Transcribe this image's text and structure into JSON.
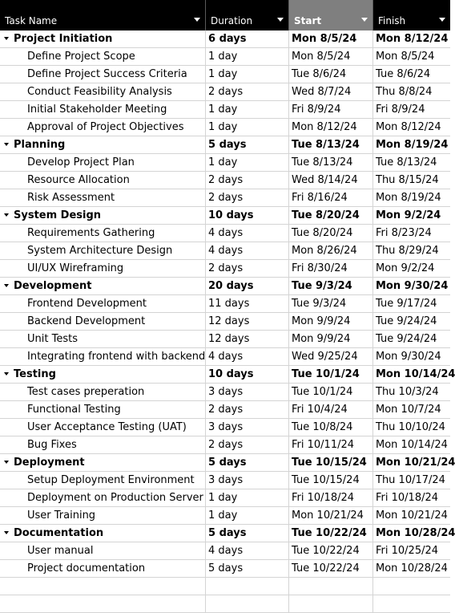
{
  "columns": [
    {
      "label": "Task Name",
      "active": false
    },
    {
      "label": "Duration",
      "active": false
    },
    {
      "label": "Start",
      "active": true
    },
    {
      "label": "Finish",
      "active": false
    }
  ],
  "rows": [
    {
      "type": "summary",
      "task": "Project Initiation",
      "duration": "6 days",
      "start": "Mon 8/5/24",
      "finish": "Mon 8/12/24"
    },
    {
      "type": "task",
      "task": "Define Project Scope",
      "duration": "1 day",
      "start": "Mon 8/5/24",
      "finish": "Mon 8/5/24"
    },
    {
      "type": "task",
      "task": "Define Project Success Criteria",
      "duration": "1 day",
      "start": "Tue 8/6/24",
      "finish": "Tue 8/6/24"
    },
    {
      "type": "task",
      "task": "Conduct Feasibility Analysis",
      "duration": "2 days",
      "start": "Wed 8/7/24",
      "finish": "Thu 8/8/24"
    },
    {
      "type": "task",
      "task": "Initial Stakeholder Meeting",
      "duration": "1 day",
      "start": "Fri 8/9/24",
      "finish": "Fri 8/9/24"
    },
    {
      "type": "task",
      "task": "Approval of Project Objectives",
      "duration": "1 day",
      "start": "Mon 8/12/24",
      "finish": "Mon 8/12/24"
    },
    {
      "type": "summary",
      "task": "Planning",
      "duration": "5 days",
      "start": "Tue 8/13/24",
      "finish": "Mon 8/19/24"
    },
    {
      "type": "task",
      "task": "Develop Project Plan",
      "duration": "1 day",
      "start": "Tue 8/13/24",
      "finish": "Tue 8/13/24"
    },
    {
      "type": "task",
      "task": "Resource Allocation",
      "duration": "2 days",
      "start": "Wed 8/14/24",
      "finish": "Thu 8/15/24"
    },
    {
      "type": "task",
      "task": "Risk Assessment",
      "duration": "2 days",
      "start": "Fri 8/16/24",
      "finish": "Mon 8/19/24"
    },
    {
      "type": "summary",
      "task": "System Design",
      "duration": "10 days",
      "start": "Tue 8/20/24",
      "finish": "Mon 9/2/24"
    },
    {
      "type": "task",
      "task": "Requirements Gathering",
      "duration": "4 days",
      "start": "Tue 8/20/24",
      "finish": "Fri 8/23/24"
    },
    {
      "type": "task",
      "task": "System Architecture Design",
      "duration": "4 days",
      "start": "Mon 8/26/24",
      "finish": "Thu 8/29/24"
    },
    {
      "type": "task",
      "task": "UI/UX Wireframing",
      "duration": "2 days",
      "start": "Fri 8/30/24",
      "finish": "Mon 9/2/24"
    },
    {
      "type": "summary",
      "task": "Development",
      "duration": "20 days",
      "start": "Tue 9/3/24",
      "finish": "Mon 9/30/24"
    },
    {
      "type": "task",
      "task": "Frontend Development",
      "duration": "11 days",
      "start": "Tue 9/3/24",
      "finish": "Tue 9/17/24"
    },
    {
      "type": "task",
      "task": "Backend Development",
      "duration": "12 days",
      "start": "Mon 9/9/24",
      "finish": "Tue 9/24/24"
    },
    {
      "type": "task",
      "task": "Unit Tests",
      "duration": "12 days",
      "start": "Mon 9/9/24",
      "finish": "Tue 9/24/24"
    },
    {
      "type": "task",
      "task": "Integrating frontend with backend",
      "duration": "4 days",
      "start": "Wed 9/25/24",
      "finish": "Mon 9/30/24"
    },
    {
      "type": "summary",
      "task": "Testing",
      "duration": "10 days",
      "start": "Tue 10/1/24",
      "finish": "Mon 10/14/24"
    },
    {
      "type": "task",
      "task": "Test cases preperation",
      "duration": "3 days",
      "start": "Tue 10/1/24",
      "finish": "Thu 10/3/24"
    },
    {
      "type": "task",
      "task": "Functional Testing",
      "duration": "2 days",
      "start": "Fri 10/4/24",
      "finish": "Mon 10/7/24"
    },
    {
      "type": "task",
      "task": "User Acceptance Testing (UAT)",
      "duration": "3 days",
      "start": "Tue 10/8/24",
      "finish": "Thu 10/10/24"
    },
    {
      "type": "task",
      "task": "Bug Fixes",
      "duration": "2 days",
      "start": "Fri 10/11/24",
      "finish": "Mon 10/14/24"
    },
    {
      "type": "summary",
      "task": "Deployment",
      "duration": "5 days",
      "start": "Tue 10/15/24",
      "finish": "Mon 10/21/24"
    },
    {
      "type": "task",
      "task": "Setup Deployment Environment",
      "duration": "3 days",
      "start": "Tue 10/15/24",
      "finish": "Thu 10/17/24"
    },
    {
      "type": "task",
      "task": "Deployment on Production Server",
      "duration": "1 day",
      "start": "Fri 10/18/24",
      "finish": "Fri 10/18/24"
    },
    {
      "type": "task",
      "task": "User Training",
      "duration": "1 day",
      "start": "Mon 10/21/24",
      "finish": "Mon 10/21/24"
    },
    {
      "type": "summary",
      "task": "Documentation",
      "duration": "5 days",
      "start": "Tue 10/22/24",
      "finish": "Mon 10/28/24"
    },
    {
      "type": "task",
      "task": "User manual",
      "duration": "4 days",
      "start": "Tue 10/22/24",
      "finish": "Fri 10/25/24"
    },
    {
      "type": "task",
      "task": "Project documentation",
      "duration": "5 days",
      "start": "Tue 10/22/24",
      "finish": "Mon 10/28/24"
    },
    {
      "type": "empty",
      "task": "",
      "duration": "",
      "start": "",
      "finish": ""
    },
    {
      "type": "empty",
      "task": "",
      "duration": "",
      "start": "",
      "finish": ""
    }
  ]
}
